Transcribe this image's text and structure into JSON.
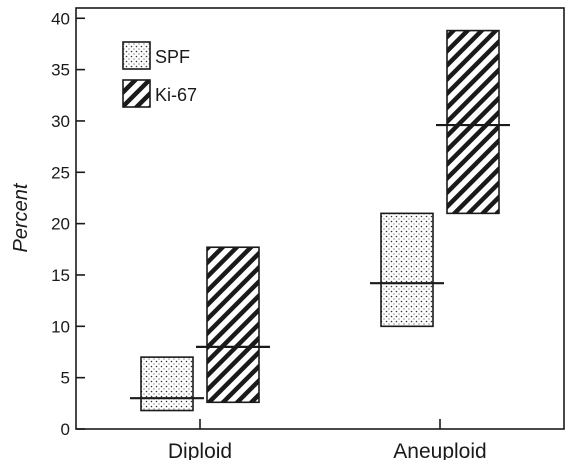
{
  "chart_data": {
    "type": "bar",
    "subtype": "floating-range-with-mean",
    "title": "",
    "xlabel": "",
    "ylabel": "Percent",
    "ylim": [
      0,
      41
    ],
    "yticks": [
      0,
      5,
      10,
      15,
      20,
      25,
      30,
      35,
      40
    ],
    "categories": [
      "Diploid",
      "Aneuploid"
    ],
    "grid": false,
    "legend": {
      "position": "top-left",
      "entries": [
        "SPF",
        "Ki-67"
      ]
    },
    "series": [
      {
        "name": "SPF",
        "pattern": "dotted",
        "low": [
          1.8,
          10.0
        ],
        "high": [
          7.0,
          21.0
        ],
        "mean": [
          3.0,
          14.2
        ]
      },
      {
        "name": "Ki-67",
        "pattern": "diagonal-hatch",
        "low": [
          2.6,
          21.0
        ],
        "high": [
          17.7,
          38.8
        ],
        "mean": [
          8.0,
          29.6
        ]
      }
    ]
  }
}
